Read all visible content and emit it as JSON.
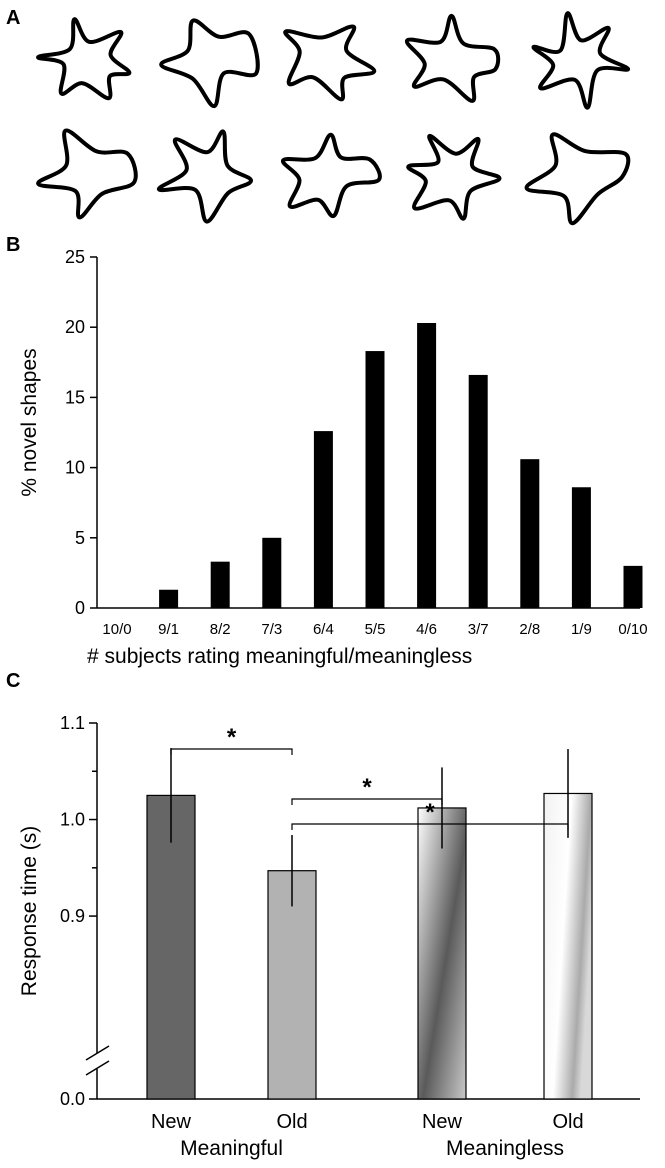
{
  "panels": {
    "a": {
      "label": "A",
      "shape_names": [
        "shape-1",
        "shape-2",
        "shape-3",
        "shape-4",
        "shape-5",
        "shape-6",
        "shape-7",
        "shape-8",
        "shape-9",
        "shape-10"
      ]
    },
    "b": {
      "label": "B"
    },
    "c": {
      "label": "C"
    }
  },
  "chart_data": [
    {
      "panel": "B",
      "type": "bar",
      "categories": [
        "10/0",
        "9/1",
        "8/2",
        "7/3",
        "6/4",
        "5/5",
        "4/6",
        "3/7",
        "2/8",
        "1/9",
        "0/10"
      ],
      "values": [
        0,
        1.3,
        3.3,
        5.0,
        12.6,
        18.3,
        20.3,
        16.6,
        10.6,
        8.6,
        3.0
      ],
      "ylim": [
        0,
        25
      ],
      "yticks": [
        0,
        5,
        10,
        15,
        20,
        25
      ],
      "ytick_labels": [
        "0",
        "5",
        "10",
        "15",
        "20",
        "25"
      ],
      "xlabel": "# subjects rating meaningful/meaningless",
      "ylabel": "% novel shapes",
      "bar_color": "#000000",
      "grid": false
    },
    {
      "panel": "C",
      "type": "bar",
      "categories": [
        "New",
        "Old",
        "New",
        "Old"
      ],
      "groups": [
        "Meaningful",
        "Meaningless"
      ],
      "group_of_category": [
        0,
        0,
        1,
        1
      ],
      "values": [
        1.025,
        0.947,
        1.012,
        1.027
      ],
      "errors": [
        0.049,
        0.037,
        0.042,
        0.046
      ],
      "ylim": [
        0.84,
        1.1
      ],
      "yaxis_break": true,
      "yticks": [
        0.9,
        1.0,
        1.1
      ],
      "ytick_labels": [
        "0.9",
        "1.0",
        "1.1"
      ],
      "ybottom_label": "0.0",
      "ylabel": "Response time (s)",
      "bar_fills": [
        "solid-dark",
        "solid-light",
        "gradient-dark",
        "gradient-light"
      ],
      "colors": {
        "meaningful_new": "#666666",
        "meaningful_old": "#b2b2b2",
        "gradient_dark": "#5a5a5a",
        "gradient_light": "#ffffff",
        "gradient_mid": "#c8c8c8"
      },
      "significance": [
        {
          "from": 0,
          "to": 1,
          "label": "*"
        },
        {
          "from": 1,
          "to": 2,
          "label": "*"
        },
        {
          "from": 1,
          "to": 3,
          "label": "*"
        }
      ],
      "grid": false
    }
  ]
}
